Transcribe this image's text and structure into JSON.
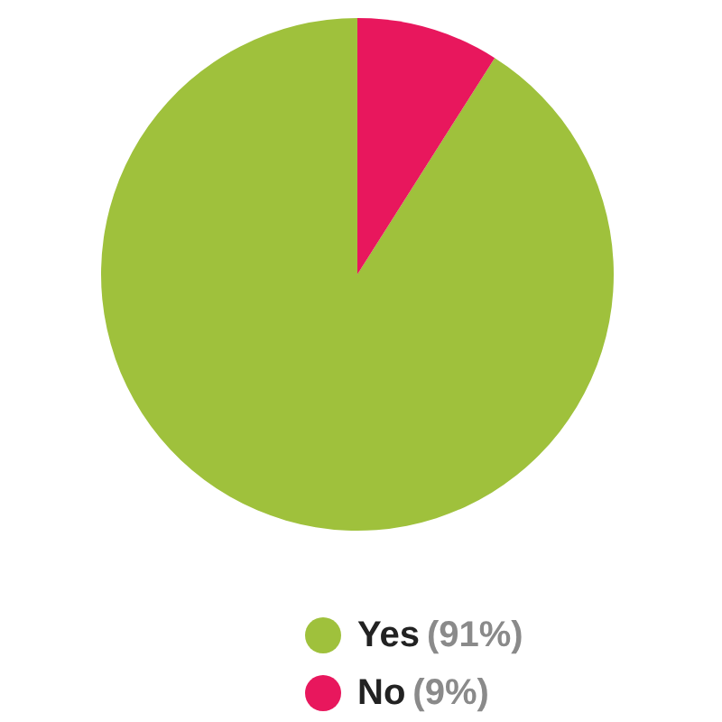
{
  "chart_data": {
    "type": "pie",
    "categories": [
      "Yes",
      "No"
    ],
    "values": [
      91,
      9
    ],
    "colors": [
      "#9fc13c",
      "#e8175d"
    ],
    "value_labels": [
      "(91%)",
      "(9%)"
    ],
    "legend": "bottom"
  }
}
